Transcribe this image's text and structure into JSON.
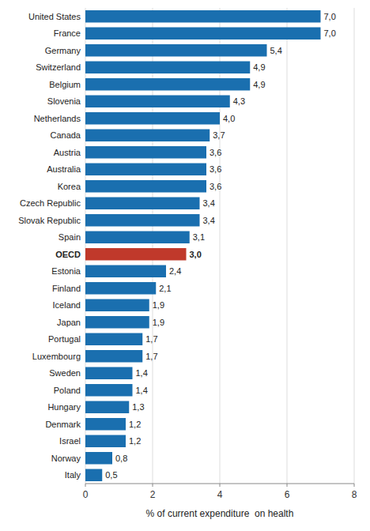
{
  "chart_data": {
    "type": "bar",
    "orientation": "horizontal",
    "categories": [
      "United States",
      "France",
      "Germany",
      "Switzerland",
      "Belgium",
      "Slovenia",
      "Netherlands",
      "Canada",
      "Austria",
      "Australia",
      "Korea",
      "Czech Republic",
      "Slovak Republic",
      "Spain",
      "OECD",
      "Estonia",
      "Finland",
      "Iceland",
      "Japan",
      "Portugal",
      "Luxembourg",
      "Sweden",
      "Poland",
      "Hungary",
      "Denmark",
      "Israel",
      "Norway",
      "Italy"
    ],
    "values": [
      7.0,
      7.0,
      5.4,
      4.9,
      4.9,
      4.3,
      4.0,
      3.7,
      3.6,
      3.6,
      3.6,
      3.4,
      3.4,
      3.1,
      3.0,
      2.4,
      2.1,
      1.9,
      1.9,
      1.7,
      1.7,
      1.4,
      1.4,
      1.3,
      1.2,
      1.2,
      0.8,
      0.5
    ],
    "value_labels": [
      "7,0",
      "7,0",
      "5,4",
      "4,9",
      "4,9",
      "4,3",
      "4,0",
      "3,7",
      "3,6",
      "3,6",
      "3,6",
      "3,4",
      "3,4",
      "3,1",
      "3,0",
      "2,4",
      "2,1",
      "1,9",
      "1,9",
      "1,7",
      "1,7",
      "1,4",
      "1,4",
      "1,3",
      "1,2",
      "1,2",
      "0,8",
      "0,5"
    ],
    "colors": [
      "#1a6faf",
      "#1a6faf",
      "#1a6faf",
      "#1a6faf",
      "#1a6faf",
      "#1a6faf",
      "#1a6faf",
      "#1a6faf",
      "#1a6faf",
      "#1a6faf",
      "#1a6faf",
      "#1a6faf",
      "#1a6faf",
      "#1a6faf",
      "#c0392b",
      "#1a6faf",
      "#1a6faf",
      "#1a6faf",
      "#1a6faf",
      "#1a6faf",
      "#1a6faf",
      "#1a6faf",
      "#1a6faf",
      "#1a6faf",
      "#1a6faf",
      "#1a6faf",
      "#1a6faf",
      "#1a6faf"
    ],
    "data_labels": true,
    "xlabel": "% of current expenditure  on health",
    "xlim": [
      0,
      8
    ],
    "xticks": [
      0,
      2,
      4,
      6,
      8
    ],
    "grid": true
  }
}
